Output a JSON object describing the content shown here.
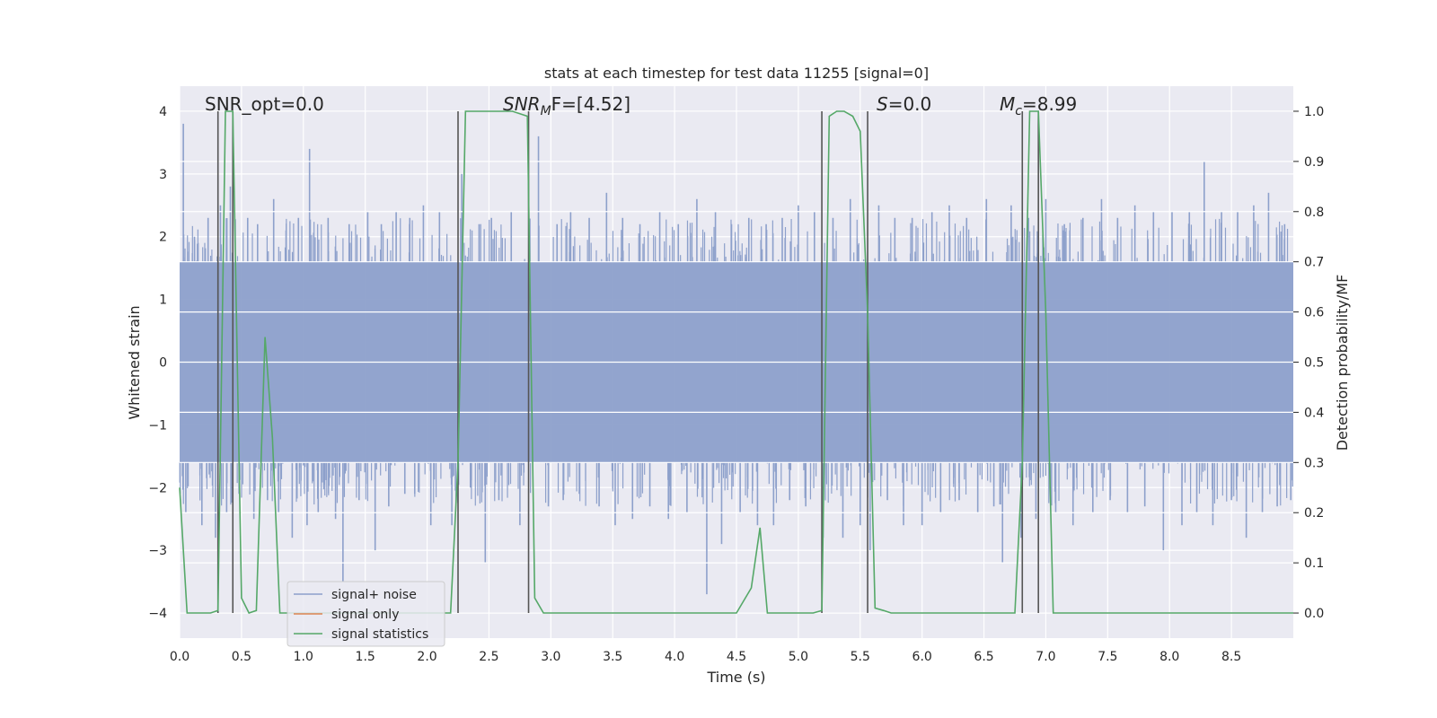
{
  "chart_data": {
    "type": "line",
    "title": "stats at each timestep for test data 11255 [signal=0]",
    "xlabel": "Time (s)",
    "ylabel_left": "Whitened strain",
    "ylabel_right": "Detection probability/MF",
    "xlim": [
      0.0,
      9.0
    ],
    "ylim_left": [
      -4.4,
      4.4
    ],
    "ylim_right": [
      -0.05,
      1.05
    ],
    "x_ticks": [
      "0.0",
      "0.5",
      "1.0",
      "1.5",
      "2.0",
      "2.5",
      "3.0",
      "3.5",
      "4.0",
      "4.5",
      "5.0",
      "5.5",
      "6.0",
      "6.5",
      "7.0",
      "7.5",
      "8.0",
      "8.5"
    ],
    "y_ticks_left": [
      "−4",
      "−3",
      "−2",
      "−1",
      "0",
      "1",
      "2",
      "3",
      "4"
    ],
    "y_ticks_right": [
      "0.0",
      "0.1",
      "0.2",
      "0.3",
      "0.4",
      "0.5",
      "0.6",
      "0.7",
      "0.8",
      "0.9",
      "1.0"
    ],
    "annotations": {
      "snr_opt": "SNR_opt=0.0",
      "snr_mf_main": "SNR",
      "snr_mf_sub": "M",
      "snr_mf_rest": "F=[4.52]",
      "s_main": "S",
      "s_rest": "=0.0",
      "mc_main": "M",
      "mc_sub": "c",
      "mc_rest": "=8.99"
    },
    "legend": {
      "placement": "lower-left",
      "entries": [
        {
          "label": "signal+ noise",
          "color": "#8da0cb"
        },
        {
          "label": "signal only",
          "color": "#dd8452"
        },
        {
          "label": "signal statistics",
          "color": "#55a868"
        }
      ]
    },
    "series": [
      {
        "name": "signal+ noise",
        "axis": "left",
        "style": "dense noise band",
        "color": "#8da0cb",
        "band_lower": -1.6,
        "band_upper": 1.6,
        "spikes": [
          [
            0.03,
            3.8
          ],
          [
            0.05,
            -2.4
          ],
          [
            0.12,
            2.0
          ],
          [
            0.18,
            -2.6
          ],
          [
            0.23,
            2.3
          ],
          [
            0.29,
            -2.8
          ],
          [
            0.33,
            2.5
          ],
          [
            0.38,
            -2.4
          ],
          [
            0.41,
            2.8
          ],
          [
            0.48,
            -2.1
          ],
          [
            0.55,
            2.3
          ],
          [
            0.6,
            -2.5
          ],
          [
            0.63,
            2.2
          ],
          [
            0.71,
            -2.2
          ],
          [
            0.76,
            2.6
          ],
          [
            0.8,
            -2.4
          ],
          [
            0.86,
            2.1
          ],
          [
            0.91,
            -2.8
          ],
          [
            0.96,
            2.3
          ],
          [
            1.03,
            -2.6
          ],
          [
            1.05,
            3.4
          ],
          [
            1.12,
            -2.4
          ],
          [
            1.2,
            2.3
          ],
          [
            1.26,
            -2.5
          ],
          [
            1.32,
            -3.5
          ],
          [
            1.37,
            2.2
          ],
          [
            1.45,
            -2.2
          ],
          [
            1.52,
            2.4
          ],
          [
            1.58,
            -3.0
          ],
          [
            1.63,
            2.2
          ],
          [
            1.69,
            -2.3
          ],
          [
            1.75,
            2.4
          ],
          [
            1.82,
            -2.1
          ],
          [
            1.86,
            2.3
          ],
          [
            1.9,
            -2.1
          ],
          [
            1.97,
            2.5
          ],
          [
            2.03,
            -2.6
          ],
          [
            2.1,
            2.4
          ],
          [
            2.2,
            -2.6
          ],
          [
            2.28,
            3.0
          ],
          [
            2.35,
            -2.0
          ],
          [
            2.42,
            2.2
          ],
          [
            2.47,
            -3.2
          ],
          [
            2.52,
            2.3
          ],
          [
            2.58,
            -2.2
          ],
          [
            2.68,
            2.4
          ],
          [
            2.75,
            -2.6
          ],
          [
            2.9,
            3.6
          ],
          [
            2.98,
            -2.3
          ],
          [
            3.05,
            2.2
          ],
          [
            3.1,
            -2.2
          ],
          [
            3.16,
            2.4
          ],
          [
            3.23,
            -2.1
          ],
          [
            3.31,
            2.3
          ],
          [
            3.39,
            -2.3
          ],
          [
            3.45,
            2.7
          ],
          [
            3.52,
            -2.6
          ],
          [
            3.58,
            2.3
          ],
          [
            3.66,
            -2.5
          ],
          [
            3.72,
            2.2
          ],
          [
            3.8,
            -2.3
          ],
          [
            3.88,
            2.4
          ],
          [
            3.95,
            -2.5
          ],
          [
            4.03,
            2.2
          ],
          [
            4.1,
            -2.4
          ],
          [
            4.18,
            2.6
          ],
          [
            4.26,
            -3.7
          ],
          [
            4.33,
            2.4
          ],
          [
            4.38,
            -2.9
          ],
          [
            4.46,
            2.2
          ],
          [
            4.53,
            -2.4
          ],
          [
            4.6,
            2.3
          ],
          [
            4.67,
            -2.6
          ],
          [
            4.74,
            2.2
          ],
          [
            4.8,
            -2.6
          ],
          [
            4.87,
            2.3
          ],
          [
            4.93,
            -2.2
          ],
          [
            5.0,
            2.5
          ],
          [
            5.06,
            -2.3
          ],
          [
            5.13,
            2.4
          ],
          [
            5.2,
            -2.8
          ],
          [
            5.28,
            2.3
          ],
          [
            5.36,
            -2.8
          ],
          [
            5.42,
            2.6
          ],
          [
            5.5,
            -2.6
          ],
          [
            5.58,
            -3.0
          ],
          [
            5.65,
            2.5
          ],
          [
            5.72,
            -2.2
          ],
          [
            5.78,
            2.3
          ],
          [
            5.85,
            -2.6
          ],
          [
            5.92,
            2.3
          ],
          [
            6.0,
            -2.6
          ],
          [
            6.08,
            2.4
          ],
          [
            6.15,
            -2.4
          ],
          [
            6.22,
            2.5
          ],
          [
            6.3,
            -2.2
          ],
          [
            6.36,
            2.3
          ],
          [
            6.45,
            -2.4
          ],
          [
            6.52,
            2.6
          ],
          [
            6.58,
            -2.3
          ],
          [
            6.65,
            -3.2
          ],
          [
            6.72,
            2.5
          ],
          [
            6.8,
            -2.8
          ],
          [
            6.86,
            2.3
          ],
          [
            6.92,
            -2.5
          ],
          [
            7.0,
            2.6
          ],
          [
            7.08,
            -2.4
          ],
          [
            7.15,
            2.2
          ],
          [
            7.22,
            -2.6
          ],
          [
            7.3,
            2.3
          ],
          [
            7.38,
            -2.4
          ],
          [
            7.45,
            2.6
          ],
          [
            7.52,
            -2.2
          ],
          [
            7.58,
            2.3
          ],
          [
            7.66,
            -2.4
          ],
          [
            7.72,
            2.5
          ],
          [
            7.8,
            -2.3
          ],
          [
            7.87,
            2.4
          ],
          [
            7.95,
            -3.0
          ],
          [
            8.02,
            2.4
          ],
          [
            8.1,
            -2.6
          ],
          [
            8.16,
            2.4
          ],
          [
            8.22,
            -2.4
          ],
          [
            8.28,
            3.2
          ],
          [
            8.35,
            -2.6
          ],
          [
            8.42,
            2.4
          ],
          [
            8.5,
            -2.2
          ],
          [
            8.55,
            2.4
          ],
          [
            8.62,
            -2.8
          ],
          [
            8.68,
            2.5
          ],
          [
            8.75,
            -2.4
          ],
          [
            8.8,
            2.7
          ],
          [
            8.87,
            -2.3
          ],
          [
            8.93,
            2.2
          ],
          [
            8.98,
            -2.2
          ]
        ]
      },
      {
        "name": "signal only",
        "axis": "left",
        "color": "#dd8452",
        "x": [
          0.0,
          9.0
        ],
        "y": [
          0.0,
          0.0
        ]
      },
      {
        "name": "signal statistics",
        "axis": "right",
        "color": "#55a868",
        "x": [
          0.0,
          0.06,
          0.12,
          0.19,
          0.25,
          0.31,
          0.37,
          0.43,
          0.5,
          0.56,
          0.62,
          0.69,
          0.75,
          0.81,
          0.87,
          0.94,
          1.0,
          1.25,
          1.5,
          1.75,
          2.0,
          2.19,
          2.25,
          2.31,
          2.44,
          2.56,
          2.69,
          2.81,
          2.87,
          2.94,
          3.0,
          3.5,
          4.0,
          4.5,
          4.62,
          4.69,
          4.75,
          4.81,
          4.87,
          5.0,
          5.12,
          5.19,
          5.25,
          5.31,
          5.37,
          5.44,
          5.5,
          5.56,
          5.62,
          5.69,
          5.75,
          6.0,
          6.5,
          6.75,
          6.81,
          6.87,
          6.94,
          7.0,
          7.06,
          7.12,
          7.5,
          8.0,
          8.5,
          9.0
        ],
        "y": [
          0.25,
          0.0,
          0.0,
          0.0,
          0.0,
          0.005,
          1.0,
          1.0,
          0.03,
          0.0,
          0.005,
          0.55,
          0.35,
          0.0,
          0.0,
          0.0,
          0.0,
          0.0,
          0.0,
          0.0,
          0.0,
          0.0,
          0.3,
          1.0,
          1.0,
          1.0,
          1.0,
          0.99,
          0.03,
          0.0,
          0.0,
          0.0,
          0.0,
          0.0,
          0.05,
          0.17,
          0.0,
          0.0,
          0.0,
          0.0,
          0.0,
          0.005,
          0.99,
          1.0,
          1.0,
          0.99,
          0.96,
          0.6,
          0.01,
          0.005,
          0.0,
          0.0,
          0.0,
          0.0,
          0.3,
          1.0,
          1.0,
          0.6,
          0.0,
          0.0,
          0.0,
          0.0,
          0.0,
          0.0
        ]
      }
    ],
    "vertical_markers_s": [
      0.31,
      0.43,
      2.25,
      2.82,
      5.19,
      5.56,
      6.81,
      6.94
    ]
  }
}
